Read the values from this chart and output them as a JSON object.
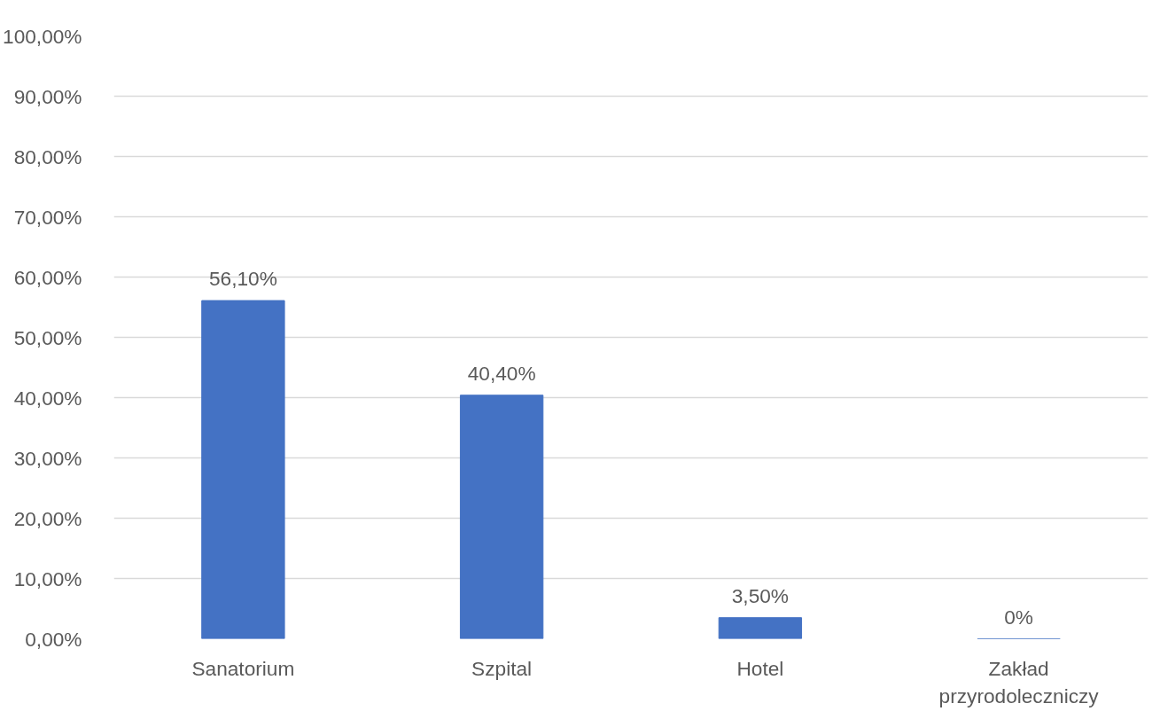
{
  "chart_data": {
    "type": "bar",
    "categories": [
      "Sanatorium",
      "Szpital",
      "Hotel",
      "Zakład przyrodoleczniczy"
    ],
    "values": [
      56.1,
      40.4,
      3.5,
      0
    ],
    "color": "#4472c4",
    "value_labels": [
      "56,10%",
      "40,40%",
      "3,50%",
      "0%"
    ],
    "ylim": [
      0,
      100
    ],
    "yticks": [
      {
        "value": 0,
        "label": "0,00%"
      },
      {
        "value": 10,
        "label": "10,00%"
      },
      {
        "value": 20,
        "label": "20,00%"
      },
      {
        "value": 30,
        "label": "30,00%"
      },
      {
        "value": 40,
        "label": "40,00%"
      },
      {
        "value": 50,
        "label": "50,00%"
      },
      {
        "value": 60,
        "label": "60,00%"
      },
      {
        "value": 70,
        "label": "70,00%"
      },
      {
        "value": 80,
        "label": "80,00%"
      },
      {
        "value": 90,
        "label": "90,00%"
      },
      {
        "value": 100,
        "label": "100,00%"
      }
    ],
    "grid": "y"
  }
}
